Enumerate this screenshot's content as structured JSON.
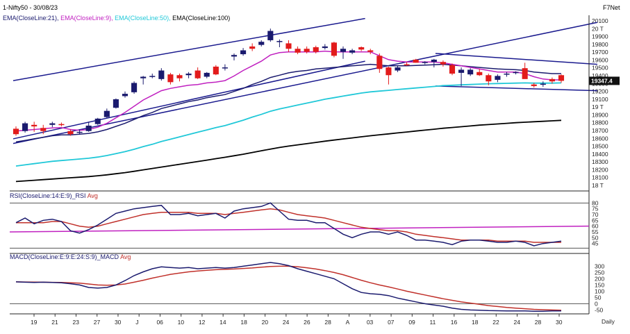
{
  "header": {
    "symbol_date": "1-Nifty50 - 30/08/23",
    "brand": "F7Net",
    "ema_labels": [
      {
        "text": "EMA(CloseLine:21),",
        "color": "#1a1a6e"
      },
      {
        "text": "EMA(CloseLine:9),",
        "color": "#c020c0"
      },
      {
        "text": "EMA(CloseLine:50),",
        "color": "#20c8d8"
      },
      {
        "text": "EMA(CloseLine:100)",
        "color": "#000000"
      }
    ],
    "rsi_label": "RSI(CloseLine:14:E:9)_RSI",
    "rsi_avg": "Avg",
    "macd_label": "MACD(CloseLine:E:9:E:24:S:9)_MACD",
    "macd_avg": "Avg",
    "period": "Daily",
    "last_price": "19347.4"
  },
  "colors": {
    "up": "#1a1a6e",
    "down": "#e21b1b",
    "ema9": "#c020c0",
    "ema21": "#1a1a6e",
    "ema50": "#20c8d8",
    "ema100": "#000000",
    "trend": "#1a1a8e",
    "rsi": "#1a1a6e",
    "avg": "#c0302a"
  },
  "chart_data": [
    {
      "type": "candlestick",
      "title": "1-Nifty50 - 30/08/23",
      "x_tick_labels": [
        "19",
        "21",
        "23",
        "27",
        "30",
        "J",
        "06",
        "10",
        "12",
        "14",
        "18",
        "20",
        "24",
        "26",
        "28",
        "A",
        "03",
        "07",
        "09",
        "11",
        "16",
        "18",
        "22",
        "24",
        "28",
        "30"
      ],
      "y_tick_labels": [
        "20100",
        "20 T",
        "19900",
        "19800",
        "19700",
        "19600",
        "19500",
        "19400",
        "19300",
        "19200",
        "19100",
        "19 T",
        "18900",
        "18800",
        "18700",
        "18600",
        "18500",
        "18400",
        "18300",
        "18200",
        "18100",
        "18 T"
      ],
      "ylim": [
        18000,
        20120
      ],
      "candles": [
        {
          "o": 18730,
          "h": 18760,
          "l": 18640,
          "c": 18660
        },
        {
          "o": 18700,
          "h": 18820,
          "l": 18680,
          "c": 18800
        },
        {
          "o": 18780,
          "h": 18820,
          "l": 18690,
          "c": 18760
        },
        {
          "o": 18740,
          "h": 18780,
          "l": 18660,
          "c": 18700
        },
        {
          "o": 18780,
          "h": 18820,
          "l": 18750,
          "c": 18800
        },
        {
          "o": 18790,
          "h": 18810,
          "l": 18760,
          "c": 18780
        },
        {
          "o": 18700,
          "h": 18720,
          "l": 18640,
          "c": 18660
        },
        {
          "o": 18680,
          "h": 18720,
          "l": 18660,
          "c": 18690
        },
        {
          "o": 18700,
          "h": 18820,
          "l": 18690,
          "c": 18770
        },
        {
          "o": 18790,
          "h": 18870,
          "l": 18780,
          "c": 18860
        },
        {
          "o": 18880,
          "h": 18990,
          "l": 18870,
          "c": 18960
        },
        {
          "o": 19000,
          "h": 19120,
          "l": 18990,
          "c": 19110
        },
        {
          "o": 19150,
          "h": 19210,
          "l": 19130,
          "c": 19180
        },
        {
          "o": 19200,
          "h": 19340,
          "l": 19180,
          "c": 19320
        },
        {
          "o": 19380,
          "h": 19410,
          "l": 19300,
          "c": 19400
        },
        {
          "o": 19400,
          "h": 19440,
          "l": 19380,
          "c": 19410
        },
        {
          "o": 19370,
          "h": 19510,
          "l": 19350,
          "c": 19480
        },
        {
          "o": 19430,
          "h": 19450,
          "l": 19300,
          "c": 19330
        },
        {
          "o": 19420,
          "h": 19440,
          "l": 19340,
          "c": 19380
        },
        {
          "o": 19420,
          "h": 19460,
          "l": 19380,
          "c": 19440
        },
        {
          "o": 19480,
          "h": 19520,
          "l": 19370,
          "c": 19380
        },
        {
          "o": 19400,
          "h": 19460,
          "l": 19380,
          "c": 19450
        },
        {
          "o": 19530,
          "h": 19550,
          "l": 19420,
          "c": 19430
        },
        {
          "o": 19510,
          "h": 19560,
          "l": 19480,
          "c": 19520
        },
        {
          "o": 19660,
          "h": 19700,
          "l": 19610,
          "c": 19680
        },
        {
          "o": 19690,
          "h": 19770,
          "l": 19670,
          "c": 19740
        },
        {
          "o": 19790,
          "h": 19830,
          "l": 19730,
          "c": 19760
        },
        {
          "o": 19810,
          "h": 19870,
          "l": 19790,
          "c": 19850
        },
        {
          "o": 19870,
          "h": 20020,
          "l": 19850,
          "c": 19990
        },
        {
          "o": 19850,
          "h": 19880,
          "l": 19780,
          "c": 19860
        },
        {
          "o": 19830,
          "h": 19870,
          "l": 19720,
          "c": 19760
        },
        {
          "o": 19760,
          "h": 19790,
          "l": 19690,
          "c": 19710
        },
        {
          "o": 19760,
          "h": 19790,
          "l": 19700,
          "c": 19720
        },
        {
          "o": 19780,
          "h": 19800,
          "l": 19700,
          "c": 19720
        },
        {
          "o": 19770,
          "h": 19820,
          "l": 19750,
          "c": 19790
        },
        {
          "o": 19840,
          "h": 19850,
          "l": 19650,
          "c": 19670
        },
        {
          "o": 19720,
          "h": 19790,
          "l": 19630,
          "c": 19760
        },
        {
          "o": 19710,
          "h": 19760,
          "l": 19690,
          "c": 19740
        },
        {
          "o": 19780,
          "h": 19790,
          "l": 19730,
          "c": 19750
        },
        {
          "o": 19740,
          "h": 19760,
          "l": 19690,
          "c": 19720
        },
        {
          "o": 19670,
          "h": 19700,
          "l": 19450,
          "c": 19500
        },
        {
          "o": 19520,
          "h": 19530,
          "l": 19300,
          "c": 19420
        },
        {
          "o": 19480,
          "h": 19540,
          "l": 19460,
          "c": 19520
        },
        {
          "o": 19560,
          "h": 19590,
          "l": 19540,
          "c": 19550
        },
        {
          "o": 19620,
          "h": 19630,
          "l": 19580,
          "c": 19580
        },
        {
          "o": 19580,
          "h": 19600,
          "l": 19560,
          "c": 19590
        },
        {
          "o": 19590,
          "h": 19630,
          "l": 19520,
          "c": 19620
        },
        {
          "o": 19590,
          "h": 19610,
          "l": 19530,
          "c": 19560
        },
        {
          "o": 19550,
          "h": 19570,
          "l": 19420,
          "c": 19440
        },
        {
          "o": 19450,
          "h": 19520,
          "l": 19280,
          "c": 19490
        },
        {
          "o": 19430,
          "h": 19510,
          "l": 19410,
          "c": 19490
        },
        {
          "o": 19460,
          "h": 19500,
          "l": 19410,
          "c": 19420
        },
        {
          "o": 19420,
          "h": 19440,
          "l": 19290,
          "c": 19340
        },
        {
          "o": 19360,
          "h": 19430,
          "l": 19330,
          "c": 19410
        },
        {
          "o": 19430,
          "h": 19460,
          "l": 19400,
          "c": 19440
        },
        {
          "o": 19450,
          "h": 19470,
          "l": 19430,
          "c": 19460
        },
        {
          "o": 19510,
          "h": 19580,
          "l": 19380,
          "c": 19370
        },
        {
          "o": 19300,
          "h": 19320,
          "l": 19260,
          "c": 19280
        },
        {
          "o": 19300,
          "h": 19340,
          "l": 19270,
          "c": 19310
        },
        {
          "o": 19370,
          "h": 19390,
          "l": 19310,
          "c": 19340
        },
        {
          "o": 19420,
          "h": 19430,
          "l": 19320,
          "c": 19347
        }
      ],
      "ema9": [
        18700,
        18710,
        18720,
        18730,
        18740,
        18745,
        18720,
        18710,
        18720,
        18750,
        18800,
        18870,
        18940,
        19020,
        19100,
        19160,
        19220,
        19250,
        19270,
        19290,
        19300,
        19320,
        19330,
        19350,
        19410,
        19480,
        19540,
        19600,
        19680,
        19710,
        19720,
        19720,
        19720,
        19720,
        19730,
        19720,
        19720,
        19720,
        19720,
        19720,
        19670,
        19620,
        19600,
        19590,
        19590,
        19590,
        19590,
        19580,
        19560,
        19540,
        19520,
        19500,
        19480,
        19460,
        19460,
        19460,
        19440,
        19400,
        19370,
        19360,
        19360
      ],
      "ema21": [
        18560,
        18580,
        18600,
        18620,
        18640,
        18650,
        18650,
        18660,
        18670,
        18690,
        18720,
        18760,
        18800,
        18850,
        18900,
        18940,
        18990,
        19020,
        19050,
        19080,
        19100,
        19130,
        19150,
        19170,
        19210,
        19250,
        19300,
        19340,
        19390,
        19420,
        19450,
        19470,
        19480,
        19500,
        19510,
        19520,
        19530,
        19540,
        19550,
        19560,
        19550,
        19540,
        19540,
        19540,
        19545,
        19550,
        19555,
        19560,
        19550,
        19540,
        19530,
        19520,
        19510,
        19500,
        19495,
        19490,
        19480,
        19460,
        19450,
        19440,
        19440
      ],
      "ema50": [
        18250,
        18265,
        18280,
        18295,
        18310,
        18320,
        18330,
        18340,
        18350,
        18365,
        18385,
        18410,
        18435,
        18465,
        18500,
        18530,
        18565,
        18595,
        18625,
        18655,
        18685,
        18715,
        18745,
        18770,
        18805,
        18840,
        18880,
        18915,
        18955,
        18985,
        19010,
        19035,
        19060,
        19085,
        19110,
        19130,
        19150,
        19170,
        19190,
        19205,
        19215,
        19225,
        19235,
        19245,
        19255,
        19265,
        19275,
        19285,
        19290,
        19295,
        19300,
        19305,
        19310,
        19312,
        19315,
        19318,
        19320,
        19318,
        19318,
        19318,
        19320
      ],
      "ema100": [
        18050,
        18058,
        18066,
        18074,
        18082,
        18090,
        18098,
        18106,
        18114,
        18124,
        18136,
        18150,
        18165,
        18182,
        18200,
        18218,
        18236,
        18254,
        18272,
        18290,
        18308,
        18326,
        18344,
        18362,
        18382,
        18402,
        18424,
        18446,
        18468,
        18488,
        18506,
        18522,
        18538,
        18554,
        18570,
        18584,
        18598,
        18612,
        18626,
        18640,
        18652,
        18664,
        18676,
        18688,
        18700,
        18712,
        18724,
        18736,
        18746,
        18756,
        18766,
        18776,
        18784,
        18792,
        18800,
        18808,
        18814,
        18820,
        18826,
        18832,
        18838
      ],
      "trend_lines": [
        {
          "from": [
            0,
            19350
          ],
          "to": [
            50,
            20150
          ]
        },
        {
          "from": [
            0,
            18540
          ],
          "to": [
            83,
            20100
          ]
        },
        {
          "from": [
            0,
            18600
          ],
          "to": [
            50,
            19600
          ]
        },
        {
          "from": [
            60,
            19700
          ],
          "to": [
            83,
            19560
          ]
        },
        {
          "from": [
            60,
            19280
          ],
          "to": [
            83,
            19220
          ]
        }
      ]
    },
    {
      "type": "line",
      "title": "RSI(CloseLine:14:E:9)_RSI",
      "y_tick_labels": [
        "80",
        "75",
        "70",
        "65",
        "60",
        "55",
        "50",
        "45"
      ],
      "ylim": [
        40,
        82
      ],
      "reference_level": 60,
      "series": [
        {
          "name": "RSI",
          "values": [
            63,
            67,
            62,
            65,
            66,
            64,
            56,
            54,
            57,
            61,
            66,
            71,
            73,
            75,
            76,
            77,
            78,
            70,
            70,
            71,
            69,
            70,
            71,
            67,
            73,
            75,
            76,
            77,
            80,
            73,
            66,
            65,
            65,
            63,
            63,
            58,
            53,
            50,
            53,
            55,
            55,
            53,
            55,
            52,
            48,
            48,
            47,
            46,
            44,
            47,
            48,
            48,
            47,
            46,
            46,
            47,
            46,
            43,
            45,
            46,
            47
          ]
        },
        {
          "name": "Avg",
          "values": [
            63,
            63,
            63,
            63,
            64,
            64,
            62,
            60,
            59,
            60,
            62,
            64,
            66,
            68,
            70,
            71,
            72,
            72,
            72,
            72,
            71,
            71,
            71,
            70,
            71,
            72,
            73,
            74,
            75,
            74,
            72,
            70,
            69,
            68,
            67,
            65,
            63,
            61,
            59,
            58,
            57,
            56,
            56,
            55,
            53,
            52,
            51,
            50,
            49,
            48,
            48,
            48,
            48,
            47,
            47,
            47,
            47,
            46,
            46,
            46,
            46
          ]
        }
      ]
    },
    {
      "type": "line",
      "title": "MACD(CloseLine:E:9:E:24:S:9)_MACD",
      "y_tick_labels": [
        "300",
        "250",
        "200",
        "150",
        "100",
        "50",
        "0",
        "-50"
      ],
      "ylim": [
        -70,
        330
      ],
      "series": [
        {
          "name": "MACD",
          "values": [
            175,
            172,
            170,
            172,
            170,
            168,
            160,
            150,
            130,
            125,
            130,
            150,
            185,
            225,
            255,
            280,
            295,
            290,
            285,
            290,
            280,
            285,
            290,
            285,
            290,
            300,
            310,
            320,
            330,
            320,
            305,
            280,
            260,
            240,
            220,
            200,
            160,
            120,
            90,
            80,
            75,
            65,
            45,
            30,
            15,
            0,
            -10,
            -20,
            -35,
            -45,
            -50,
            -52,
            -55,
            -56,
            -58,
            -58,
            -58,
            -60,
            -60,
            -58,
            -58
          ]
        },
        {
          "name": "Avg",
          "values": [
            175,
            174,
            173,
            172,
            171,
            170,
            168,
            165,
            158,
            150,
            148,
            150,
            158,
            172,
            188,
            205,
            220,
            235,
            245,
            255,
            262,
            268,
            272,
            275,
            278,
            282,
            286,
            292,
            298,
            300,
            300,
            296,
            288,
            278,
            265,
            250,
            232,
            210,
            188,
            168,
            150,
            135,
            118,
            100,
            85,
            70,
            55,
            40,
            27,
            15,
            5,
            -5,
            -15,
            -22,
            -30,
            -35,
            -40,
            -45,
            -48,
            -50,
            -52
          ]
        }
      ]
    }
  ]
}
